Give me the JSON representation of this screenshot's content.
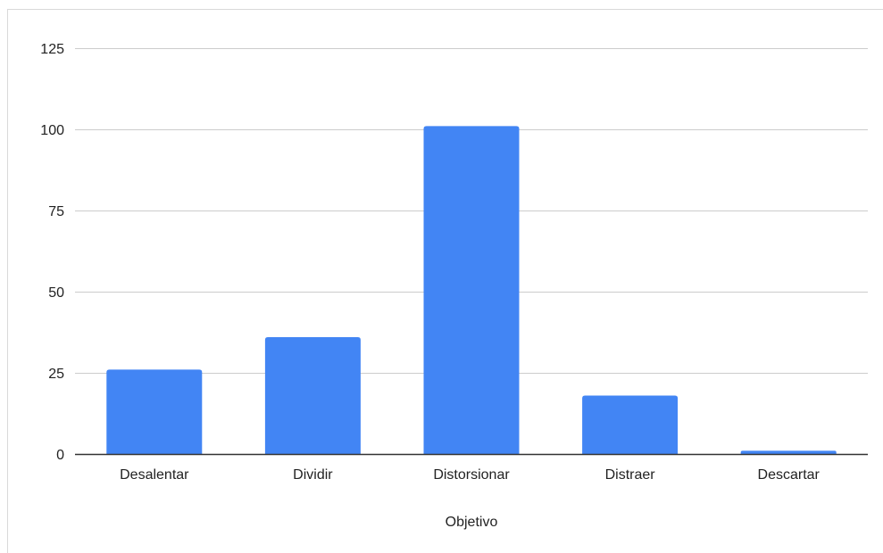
{
  "chart_data": {
    "type": "bar",
    "title": "",
    "xlabel": "Objetivo",
    "ylabel": "",
    "categories": [
      "Desalentar",
      "Dividir",
      "Distorsionar",
      "Distraer",
      "Descartar"
    ],
    "values": [
      26,
      36,
      101,
      18,
      1
    ],
    "ylim": [
      0,
      125
    ],
    "yticks": [
      0,
      25,
      50,
      75,
      100,
      125
    ],
    "grid": true,
    "legend": "none",
    "bar_color": "#4285f4",
    "grid_color": "#cccccc",
    "axis_color": "#333333",
    "frame_color": "#d9d9d9"
  }
}
